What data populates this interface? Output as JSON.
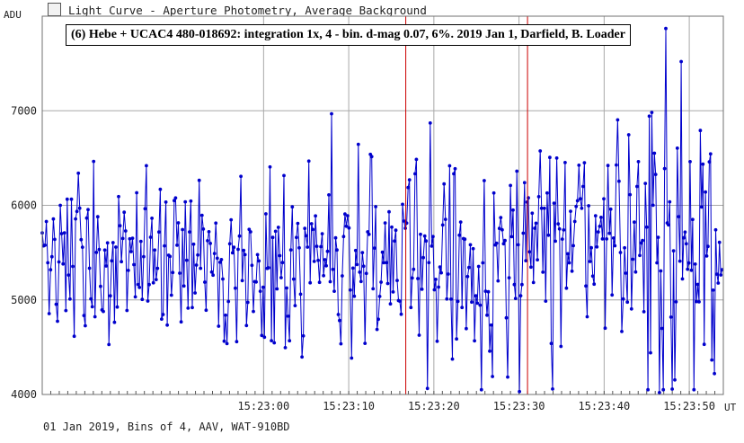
{
  "window": {
    "title": "Light Curve - Aperture Photometry, Average Background",
    "icon": "chart-icon"
  },
  "footer": "01 Jan 2019, Bins of 4, AAV, WAT-910BD",
  "chart_data": {
    "type": "line",
    "title": "(6) Hebe + UCAC4 480-018692:  integration 1x, 4 - bin.  d-mag 0.07, 6%.  2019 Jan 1, Darfield, B. Loader",
    "ylabel": "ADU",
    "xlabel": "UT",
    "ylim": [
      4000,
      8000
    ],
    "xlim_seconds": [
      -26,
      54
    ],
    "yticks": [
      4000,
      5000,
      6000,
      7000
    ],
    "xticks": [
      {
        "t": 0,
        "label": "15:23:00"
      },
      {
        "t": 10,
        "label": "15:23:10"
      },
      {
        "t": 20,
        "label": "15:23:20"
      },
      {
        "t": 30,
        "label": "15:23:30"
      },
      {
        "t": 40,
        "label": "15:23:40"
      },
      {
        "t": 50,
        "label": "15:23:50"
      }
    ],
    "markers": [
      16.7,
      31.0
    ],
    "grid": true,
    "colors": {
      "series": "#0000cc",
      "markers": "#cc0000",
      "grid": "#a8a8a8",
      "axis": "#707070"
    },
    "segments": [
      {
        "t0": -26,
        "t1": 5,
        "n": 190,
        "mean": 5420,
        "sd": 480
      },
      {
        "t0": 5,
        "t1": 16,
        "n": 70,
        "mean": 5530,
        "sd": 520
      },
      {
        "t0": 16,
        "t1": 29,
        "n": 80,
        "mean": 5320,
        "sd": 520
      },
      {
        "t0": 29,
        "t1": 32,
        "n": 20,
        "mean": 5500,
        "sd": 450
      },
      {
        "t0": 32,
        "t1": 45,
        "n": 80,
        "mean": 5760,
        "sd": 500
      },
      {
        "t0": 45,
        "t1": 54,
        "n": 60,
        "mean": 5650,
        "sd": 750
      }
    ],
    "peaks": [
      {
        "t": 47.3,
        "v": 7870
      },
      {
        "t": 49.0,
        "v": 7520
      },
      {
        "t": 30.0,
        "v": 4030
      },
      {
        "t": 46.5,
        "v": 4020
      },
      {
        "t": 53.0,
        "v": 4220
      },
      {
        "t": 19.5,
        "v": 6870
      }
    ]
  }
}
